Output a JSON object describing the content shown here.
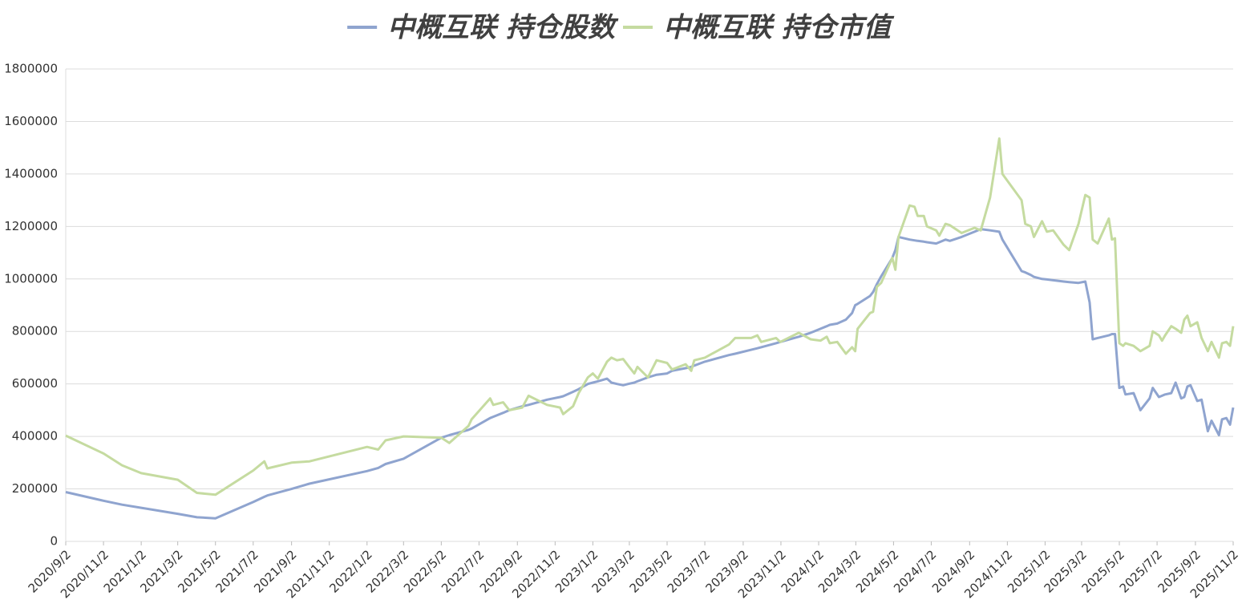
{
  "chart_data": {
    "type": "line",
    "x": [
      "2020/9/2",
      "2020/11/2",
      "2020/12/2",
      "2021/1/2",
      "2021/3/2",
      "2021/4/2",
      "2021/5/2",
      "2021/7/2",
      "2021/7/20",
      "2021/7/25",
      "2021/9/2",
      "2021/10/1",
      "2022/1/2",
      "2022/1/20",
      "2022/2/1",
      "2022/3/2",
      "2022/5/2",
      "2022/5/15",
      "2022/6/15",
      "2022/6/20",
      "2022/7/20",
      "2022/7/25",
      "2022/8/10",
      "2022/8/20",
      "2022/9/10",
      "2022/9/20",
      "2022/10/20",
      "2022/11/10",
      "2022/11/15",
      "2022/12/1",
      "2022/12/10",
      "2022/12/25",
      "2023/1/2",
      "2023/1/10",
      "2023/1/25",
      "2023/2/1",
      "2023/2/10",
      "2023/2/20",
      "2023/2/28",
      "2023/3/10",
      "2023/3/15",
      "2023/4/1",
      "2023/4/15",
      "2023/5/2",
      "2023/5/10",
      "2023/6/1",
      "2023/6/10",
      "2023/6/15",
      "2023/7/2",
      "2023/8/10",
      "2023/8/20",
      "2023/9/15",
      "2023/9/25",
      "2023/10/1",
      "2023/10/25",
      "2023/11/1",
      "2023/12/1",
      "2023/12/20",
      "2024/1/5",
      "2024/1/15",
      "2024/1/20",
      "2024/2/1",
      "2024/2/15",
      "2024/2/25",
      "2024/3/1",
      "2024/3/5",
      "2024/3/25",
      "2024/3/30",
      "2024/4/5",
      "2024/4/12",
      "2024/4/30",
      "2024/5/5",
      "2024/5/10",
      "2024/5/28",
      "2024/6/5",
      "2024/6/10",
      "2024/6/20",
      "2024/6/25",
      "2024/7/10",
      "2024/7/15",
      "2024/7/25",
      "2024/8/1",
      "2024/8/20",
      "2024/9/10",
      "2024/9/20",
      "2024/10/5",
      "2024/10/20",
      "2024/10/25",
      "2024/11/25",
      "2024/12/1",
      "2024/12/10",
      "2024/12/15",
      "2024/12/28",
      "2025/1/5",
      "2025/1/15",
      "2025/2/1",
      "2025/2/10",
      "2025/2/25",
      "2025/3/8",
      "2025/3/15",
      "2025/3/20",
      "2025/3/28",
      "2025/4/15",
      "2025/4/20",
      "2025/4/25",
      "2025/5/2",
      "2025/5/8",
      "2025/5/12",
      "2025/5/25",
      "2025/6/5",
      "2025/6/20",
      "2025/6/25",
      "2025/7/5",
      "2025/7/10",
      "2025/7/15",
      "2025/7/25",
      "2025/8/1",
      "2025/8/10",
      "2025/8/15",
      "2025/8/20",
      "2025/8/25",
      "2025/9/5",
      "2025/9/12",
      "2025/9/22",
      "2025/9/28",
      "2025/10/10",
      "2025/10/15",
      "2025/10/22",
      "2025/10/28",
      "2025/11/2"
    ],
    "series": [
      {
        "name": "中概互联 持仓股数",
        "color": "#8fa4cf",
        "values": [
          188000,
          155000,
          140000,
          128000,
          105000,
          92000,
          88000,
          150000,
          170000,
          175000,
          200000,
          220000,
          268000,
          280000,
          295000,
          315000,
          395000,
          405000,
          425000,
          430000,
          470000,
          475000,
          490000,
          500000,
          515000,
          520000,
          540000,
          550000,
          553000,
          570000,
          580000,
          600000,
          605000,
          610000,
          620000,
          605000,
          600000,
          595000,
          600000,
          605000,
          610000,
          625000,
          635000,
          640000,
          650000,
          660000,
          665000,
          670000,
          685000,
          710000,
          715000,
          730000,
          736000,
          740000,
          755000,
          760000,
          780000,
          795000,
          810000,
          820000,
          825000,
          830000,
          845000,
          870000,
          900000,
          905000,
          935000,
          950000,
          980000,
          1010000,
          1080000,
          1110000,
          1160000,
          1150000,
          1147000,
          1145000,
          1142000,
          1140000,
          1135000,
          1140000,
          1150000,
          1145000,
          1160000,
          1180000,
          1190000,
          1185000,
          1180000,
          1150000,
          1030000,
          1025000,
          1015000,
          1008000,
          1000000,
          998000,
          995000,
          990000,
          988000,
          985000,
          990000,
          910000,
          770000,
          775000,
          785000,
          790000,
          790000,
          585000,
          590000,
          560000,
          565000,
          500000,
          545000,
          585000,
          550000,
          555000,
          560000,
          565000,
          605000,
          545000,
          550000,
          590000,
          595000,
          535000,
          540000,
          420000,
          460000,
          405000,
          465000,
          470000,
          445000,
          510000
        ]
      },
      {
        "name": "中概互联 持仓市值",
        "color": "#c5dba0",
        "values": [
          403000,
          335000,
          290000,
          260000,
          235000,
          185000,
          178000,
          270000,
          305000,
          278000,
          300000,
          305000,
          360000,
          350000,
          385000,
          400000,
          395000,
          375000,
          440000,
          465000,
          545000,
          520000,
          530000,
          500000,
          510000,
          555000,
          520000,
          510000,
          485000,
          515000,
          565000,
          625000,
          640000,
          620000,
          685000,
          700000,
          690000,
          695000,
          670000,
          640000,
          665000,
          625000,
          690000,
          680000,
          655000,
          675000,
          650000,
          690000,
          700000,
          750000,
          775000,
          775000,
          785000,
          760000,
          775000,
          760000,
          795000,
          770000,
          765000,
          780000,
          755000,
          760000,
          715000,
          740000,
          725000,
          810000,
          870000,
          875000,
          970000,
          985000,
          1080000,
          1035000,
          1160000,
          1280000,
          1275000,
          1240000,
          1240000,
          1200000,
          1185000,
          1165000,
          1210000,
          1205000,
          1175000,
          1195000,
          1185000,
          1310000,
          1535000,
          1400000,
          1300000,
          1210000,
          1200000,
          1160000,
          1220000,
          1180000,
          1185000,
          1130000,
          1110000,
          1210000,
          1320000,
          1310000,
          1150000,
          1135000,
          1230000,
          1150000,
          1155000,
          755000,
          745000,
          755000,
          745000,
          725000,
          745000,
          800000,
          785000,
          765000,
          785000,
          820000,
          810000,
          795000,
          845000,
          860000,
          820000,
          835000,
          775000,
          725000,
          760000,
          700000,
          755000,
          760000,
          745000,
          820000
        ]
      }
    ],
    "ylim": [
      0,
      1800000
    ],
    "yticks": [
      0,
      200000,
      400000,
      600000,
      800000,
      1000000,
      1200000,
      1400000,
      1600000,
      1800000
    ],
    "xlim": [
      "2020/9/2",
      "2025/11/2"
    ],
    "xticks": [
      "2020/9/2",
      "2020/11/2",
      "2021/1/2",
      "2021/3/2",
      "2021/5/2",
      "2021/7/2",
      "2021/9/2",
      "2021/11/2",
      "2022/1/2",
      "2022/3/2",
      "2022/5/2",
      "2022/7/2",
      "2022/9/2",
      "2022/11/2",
      "2023/1/2",
      "2023/3/2",
      "2023/5/2",
      "2023/7/2",
      "2023/9/2",
      "2023/11/2",
      "2024/1/2",
      "2024/3/2",
      "2024/5/2",
      "2024/7/2",
      "2024/9/2",
      "2024/11/2",
      "2025/1/2",
      "2025/3/2",
      "2025/5/2",
      "2025/7/2",
      "2025/9/2",
      "2025/11/2"
    ],
    "grid": true,
    "legend": "top"
  }
}
